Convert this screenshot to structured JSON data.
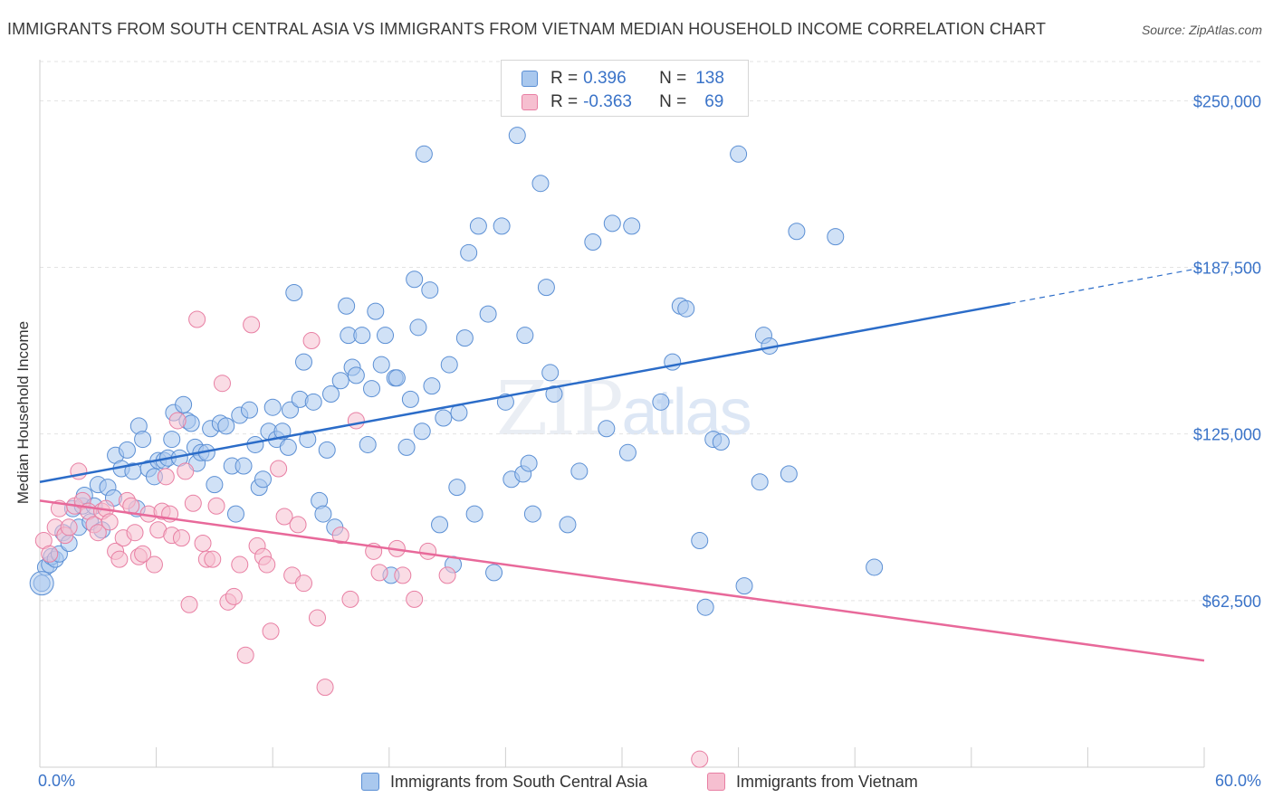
{
  "title": "IMMIGRANTS FROM SOUTH CENTRAL ASIA VS IMMIGRANTS FROM VIETNAM MEDIAN HOUSEHOLD INCOME CORRELATION CHART",
  "source": "Source: ZipAtlas.com",
  "watermark": {
    "zip": "ZIP",
    "atlas": "atlas"
  },
  "legend_top": {
    "rows": [
      {
        "r_label": "R =",
        "r_value": "0.396",
        "n_label": "N =",
        "n_value": "138"
      },
      {
        "r_label": "R =",
        "r_value": "-0.363",
        "n_label": "N =",
        "n_value": "69"
      }
    ]
  },
  "legend_bottom": {
    "series_a": "Immigrants from South Central Asia",
    "series_b": "Immigrants from Vietnam"
  },
  "colors": {
    "blue_fill": "#a9c8ee",
    "blue_stroke": "#5b8fd4",
    "blue_line": "#2b6cc8",
    "pink_fill": "#f6bfd0",
    "pink_stroke": "#e87fa3",
    "pink_line": "#e8699a",
    "axis_text": "#3a73c8",
    "grid": "#e3e3e3"
  },
  "chart_data": {
    "type": "scatter",
    "title": "IMMIGRANTS FROM SOUTH CENTRAL ASIA VS IMMIGRANTS FROM VIETNAM MEDIAN HOUSEHOLD INCOME CORRELATION CHART",
    "xlabel": "",
    "ylabel": "Median Household Income",
    "xlim": [
      0,
      60
    ],
    "ylim": [
      0,
      262000
    ],
    "x_tick_labels": [
      "0.0%",
      "60.0%"
    ],
    "y_ticks": [
      62500,
      125000,
      187500,
      250000
    ],
    "y_tick_labels": [
      "$62,500",
      "$125,000",
      "$187,500",
      "$250,000"
    ],
    "grid": true,
    "legend_position": "top-center",
    "series": [
      {
        "name": "Immigrants from South Central Asia",
        "R": 0.396,
        "N": 138,
        "trend": {
          "x0": 0,
          "y0": 107000,
          "x1": 50,
          "y1": 174000,
          "dashed_to_x": 60,
          "dashed_to_y": 187500
        },
        "points": [
          [
            0.1,
            69000
          ],
          [
            0.3,
            75000
          ],
          [
            0.5,
            76000
          ],
          [
            0.6,
            79000
          ],
          [
            0.8,
            78000
          ],
          [
            1.0,
            80000
          ],
          [
            1.2,
            88000
          ],
          [
            1.5,
            84000
          ],
          [
            1.7,
            97000
          ],
          [
            2.0,
            90000
          ],
          [
            2.2,
            98000
          ],
          [
            2.3,
            102000
          ],
          [
            2.6,
            92000
          ],
          [
            2.8,
            98000
          ],
          [
            3.0,
            106000
          ],
          [
            3.2,
            89000
          ],
          [
            3.5,
            105000
          ],
          [
            3.8,
            101000
          ],
          [
            3.9,
            117000
          ],
          [
            4.2,
            112000
          ],
          [
            4.5,
            119000
          ],
          [
            4.8,
            111000
          ],
          [
            5.0,
            97000
          ],
          [
            5.1,
            128000
          ],
          [
            5.3,
            123000
          ],
          [
            5.6,
            112000
          ],
          [
            5.9,
            109000
          ],
          [
            6.1,
            115000
          ],
          [
            6.4,
            115000
          ],
          [
            6.6,
            116000
          ],
          [
            6.8,
            123000
          ],
          [
            6.9,
            133000
          ],
          [
            7.2,
            116000
          ],
          [
            7.4,
            136000
          ],
          [
            7.6,
            130000
          ],
          [
            7.8,
            129000
          ],
          [
            8.0,
            120000
          ],
          [
            8.1,
            114000
          ],
          [
            8.3,
            118000
          ],
          [
            8.6,
            118000
          ],
          [
            8.8,
            127000
          ],
          [
            9.0,
            106000
          ],
          [
            9.3,
            129000
          ],
          [
            9.6,
            128000
          ],
          [
            9.9,
            113000
          ],
          [
            10.1,
            95000
          ],
          [
            10.3,
            132000
          ],
          [
            10.5,
            113000
          ],
          [
            10.8,
            134000
          ],
          [
            11.1,
            121000
          ],
          [
            11.3,
            105000
          ],
          [
            11.5,
            108000
          ],
          [
            11.8,
            126000
          ],
          [
            12.0,
            135000
          ],
          [
            12.2,
            123000
          ],
          [
            12.5,
            126000
          ],
          [
            12.8,
            120000
          ],
          [
            12.9,
            134000
          ],
          [
            13.1,
            178000
          ],
          [
            13.4,
            138000
          ],
          [
            13.6,
            152000
          ],
          [
            13.8,
            123000
          ],
          [
            14.1,
            137000
          ],
          [
            14.4,
            100000
          ],
          [
            14.6,
            95000
          ],
          [
            14.8,
            119000
          ],
          [
            15.0,
            140000
          ],
          [
            15.2,
            90000
          ],
          [
            15.5,
            145000
          ],
          [
            15.8,
            173000
          ],
          [
            15.9,
            162000
          ],
          [
            16.1,
            150000
          ],
          [
            16.3,
            147000
          ],
          [
            16.6,
            162000
          ],
          [
            16.9,
            121000
          ],
          [
            17.1,
            142000
          ],
          [
            17.3,
            171000
          ],
          [
            17.6,
            151000
          ],
          [
            17.8,
            162000
          ],
          [
            18.1,
            72000
          ],
          [
            18.3,
            146000
          ],
          [
            18.4,
            146000
          ],
          [
            18.9,
            120000
          ],
          [
            19.1,
            138000
          ],
          [
            19.3,
            183000
          ],
          [
            19.5,
            165000
          ],
          [
            19.7,
            126000
          ],
          [
            19.8,
            230000
          ],
          [
            20.1,
            179000
          ],
          [
            20.2,
            143000
          ],
          [
            20.6,
            91000
          ],
          [
            20.8,
            131000
          ],
          [
            21.1,
            151000
          ],
          [
            21.3,
            76000
          ],
          [
            21.5,
            105000
          ],
          [
            21.6,
            133000
          ],
          [
            21.9,
            161000
          ],
          [
            22.1,
            193000
          ],
          [
            22.4,
            95000
          ],
          [
            22.6,
            203000
          ],
          [
            23.1,
            170000
          ],
          [
            23.4,
            73000
          ],
          [
            23.8,
            203000
          ],
          [
            24.0,
            137000
          ],
          [
            24.3,
            108000
          ],
          [
            24.6,
            237000
          ],
          [
            24.9,
            110000
          ],
          [
            25.0,
            162000
          ],
          [
            25.2,
            114000
          ],
          [
            25.4,
            95000
          ],
          [
            25.8,
            219000
          ],
          [
            26.1,
            180000
          ],
          [
            26.3,
            148000
          ],
          [
            26.5,
            140000
          ],
          [
            27.2,
            91000
          ],
          [
            27.8,
            111000
          ],
          [
            28.5,
            197000
          ],
          [
            29.2,
            127000
          ],
          [
            29.5,
            204000
          ],
          [
            30.3,
            118000
          ],
          [
            30.5,
            203000
          ],
          [
            32.0,
            137000
          ],
          [
            32.6,
            152000
          ],
          [
            33.0,
            173000
          ],
          [
            33.3,
            172000
          ],
          [
            34.0,
            85000
          ],
          [
            34.3,
            60000
          ],
          [
            34.7,
            123000
          ],
          [
            35.1,
            122000
          ],
          [
            36.0,
            230000
          ],
          [
            36.3,
            68000
          ],
          [
            37.1,
            107000
          ],
          [
            37.3,
            162000
          ],
          [
            37.6,
            158000
          ],
          [
            38.6,
            110000
          ],
          [
            39.0,
            201000
          ],
          [
            41.0,
            199000
          ],
          [
            43.0,
            75000
          ]
        ]
      },
      {
        "name": "Immigrants from Vietnam",
        "R": -0.363,
        "N": 69,
        "trend": {
          "x0": 0,
          "y0": 100000,
          "x1": 60,
          "y1": 40000
        },
        "points": [
          [
            0.2,
            85000
          ],
          [
            0.5,
            80000
          ],
          [
            0.8,
            90000
          ],
          [
            1.0,
            97000
          ],
          [
            1.3,
            87000
          ],
          [
            1.5,
            90000
          ],
          [
            1.8,
            98000
          ],
          [
            2.0,
            111000
          ],
          [
            2.2,
            100000
          ],
          [
            2.5,
            96000
          ],
          [
            2.8,
            91000
          ],
          [
            3.0,
            88000
          ],
          [
            3.2,
            96000
          ],
          [
            3.4,
            97000
          ],
          [
            3.6,
            92000
          ],
          [
            3.9,
            81000
          ],
          [
            4.1,
            78000
          ],
          [
            4.3,
            86000
          ],
          [
            4.5,
            100000
          ],
          [
            4.7,
            98000
          ],
          [
            4.9,
            88000
          ],
          [
            5.1,
            79000
          ],
          [
            5.3,
            80000
          ],
          [
            5.6,
            95000
          ],
          [
            5.9,
            76000
          ],
          [
            6.1,
            89000
          ],
          [
            6.3,
            96000
          ],
          [
            6.5,
            109000
          ],
          [
            6.7,
            95000
          ],
          [
            6.8,
            87000
          ],
          [
            7.1,
            130000
          ],
          [
            7.3,
            86000
          ],
          [
            7.5,
            111000
          ],
          [
            7.7,
            61000
          ],
          [
            7.9,
            99000
          ],
          [
            8.1,
            168000
          ],
          [
            8.4,
            84000
          ],
          [
            8.6,
            78000
          ],
          [
            8.9,
            78000
          ],
          [
            9.1,
            98000
          ],
          [
            9.4,
            144000
          ],
          [
            9.7,
            62000
          ],
          [
            10.0,
            64000
          ],
          [
            10.3,
            76000
          ],
          [
            10.6,
            42000
          ],
          [
            10.9,
            166000
          ],
          [
            11.2,
            83000
          ],
          [
            11.5,
            79000
          ],
          [
            11.7,
            76000
          ],
          [
            11.9,
            51000
          ],
          [
            12.3,
            112000
          ],
          [
            12.6,
            94000
          ],
          [
            13.0,
            72000
          ],
          [
            13.3,
            91000
          ],
          [
            13.6,
            69000
          ],
          [
            14.0,
            160000
          ],
          [
            14.3,
            56000
          ],
          [
            14.7,
            30000
          ],
          [
            15.5,
            87000
          ],
          [
            16.0,
            63000
          ],
          [
            16.3,
            130000
          ],
          [
            17.2,
            81000
          ],
          [
            17.5,
            73000
          ],
          [
            18.4,
            82000
          ],
          [
            18.7,
            72000
          ],
          [
            19.3,
            63000
          ],
          [
            20.0,
            81000
          ],
          [
            21.0,
            72000
          ],
          [
            34.0,
            3000
          ]
        ]
      }
    ]
  }
}
